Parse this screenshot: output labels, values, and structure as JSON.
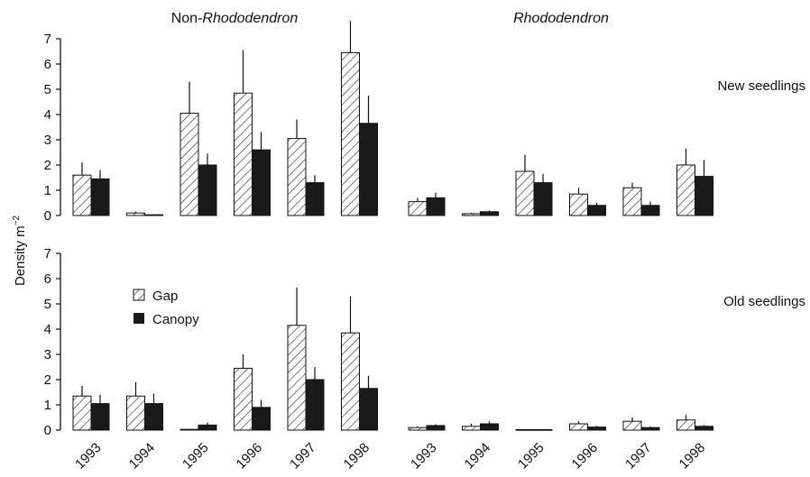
{
  "chart_data": {
    "type": "bar",
    "ylabel": "Density m",
    "ylabel_superscript": "−2",
    "groups": [
      {
        "prefix": "Non-",
        "italic": "Rhododendron"
      },
      {
        "prefix": "",
        "italic": "Rhododendron"
      }
    ],
    "categories": [
      "1993",
      "1994",
      "1995",
      "1996",
      "1997",
      "1998"
    ],
    "yticks": [
      "0",
      "1",
      "2",
      "3",
      "4",
      "5",
      "6",
      "7"
    ],
    "ylim": [
      0,
      7
    ],
    "legend": {
      "placement": "left, lower panel",
      "entries": [
        "Gap",
        "Canopy"
      ]
    },
    "series_style": {
      "Gap": "hatched",
      "Canopy": "#1a1a1a"
    },
    "panels": [
      {
        "label": "New seedlings",
        "groups": [
          {
            "gap": {
              "values": [
                1.6,
                0.1,
                4.05,
                4.85,
                3.05,
                6.45
              ],
              "errors": [
                0.5,
                0.05,
                1.25,
                1.7,
                0.75,
                1.25
              ]
            },
            "canopy": {
              "values": [
                1.45,
                0.03,
                2.0,
                2.6,
                1.3,
                3.65
              ],
              "errors": [
                0.35,
                0.0,
                0.45,
                0.7,
                0.3,
                1.1
              ]
            }
          },
          {
            "gap": {
              "values": [
                0.55,
                0.07,
                1.75,
                0.85,
                1.1,
                2.0
              ],
              "errors": [
                0.15,
                0.04,
                0.65,
                0.25,
                0.2,
                0.65
              ]
            },
            "canopy": {
              "values": [
                0.7,
                0.15,
                1.3,
                0.4,
                0.4,
                1.55
              ],
              "errors": [
                0.2,
                0.05,
                0.35,
                0.1,
                0.15,
                0.65
              ]
            }
          }
        ]
      },
      {
        "label": "Old seedlings",
        "groups": [
          {
            "gap": {
              "values": [
                1.35,
                1.35,
                0.03,
                2.45,
                4.15,
                3.85
              ],
              "errors": [
                0.4,
                0.55,
                0.0,
                0.55,
                1.5,
                1.45
              ]
            },
            "canopy": {
              "values": [
                1.05,
                1.05,
                0.2,
                0.9,
                2.0,
                1.65
              ],
              "errors": [
                0.35,
                0.4,
                0.1,
                0.3,
                0.5,
                0.5
              ]
            }
          },
          {
            "gap": {
              "values": [
                0.1,
                0.15,
                0.02,
                0.25,
                0.35,
                0.4
              ],
              "errors": [
                0.05,
                0.1,
                0.0,
                0.1,
                0.15,
                0.2
              ]
            },
            "canopy": {
              "values": [
                0.18,
                0.25,
                0.02,
                0.12,
                0.1,
                0.15
              ],
              "errors": [
                0.05,
                0.1,
                0.0,
                0.05,
                0.05,
                0.05
              ]
            }
          }
        ]
      }
    ]
  }
}
